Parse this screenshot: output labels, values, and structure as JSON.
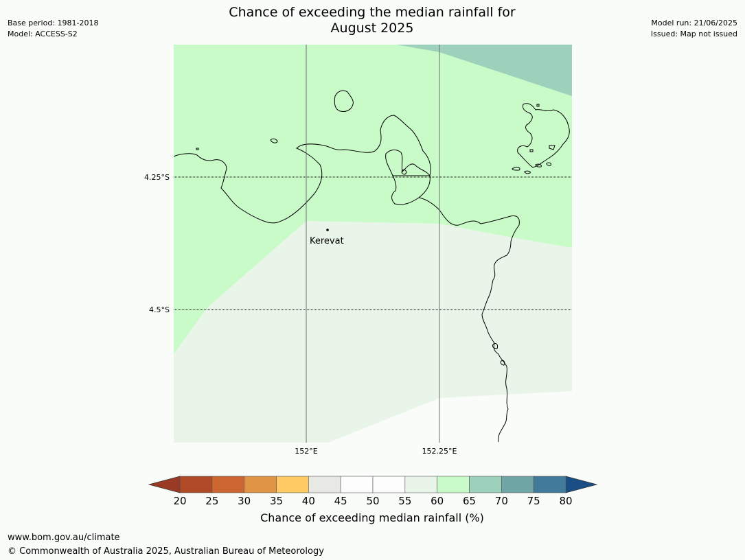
{
  "header": {
    "title_line1": "Chance of exceeding the median rainfall for",
    "title_line2": "August 2025",
    "base_period": "Base period: 1981-2018",
    "model": "Model: ACCESS-S2",
    "model_run": "Model run: 21/06/2025",
    "issued": "Issued: Map not issued"
  },
  "map": {
    "latitude_labels": [
      "4.25°S",
      "4.5°S"
    ],
    "longitude_labels": [
      "152°E",
      "152.25°E"
    ],
    "place": {
      "name": "Kerevat"
    },
    "regions": [
      {
        "category": "65-70",
        "color": "#9dd1bb"
      },
      {
        "category": "60-65",
        "color": "#c9fbc9"
      },
      {
        "category": "55-60",
        "color": "#eaf5ea"
      },
      {
        "category": "50-55",
        "color": "#fafcfa"
      }
    ]
  },
  "colorbar": {
    "label": "Chance of exceeding median rainfall (%)",
    "ticks": [
      "20",
      "25",
      "30",
      "35",
      "40",
      "45",
      "50",
      "55",
      "60",
      "65",
      "70",
      "75",
      "80"
    ],
    "under_color": "#9b3a24",
    "over_color": "#1a4f86",
    "colors": [
      "#b04a26",
      "#cd6531",
      "#e09445",
      "#fdca64",
      "#e8e8e4",
      "#fdfdfd",
      "#fdfdfd",
      "#eaf5ea",
      "#c9fbc9",
      "#9dd1bb",
      "#70a5a5",
      "#417a9b"
    ]
  },
  "footer": {
    "url": "www.bom.gov.au/climate",
    "copyright": "© Commonwealth of Australia 2025, Australian Bureau of Meteorology"
  }
}
